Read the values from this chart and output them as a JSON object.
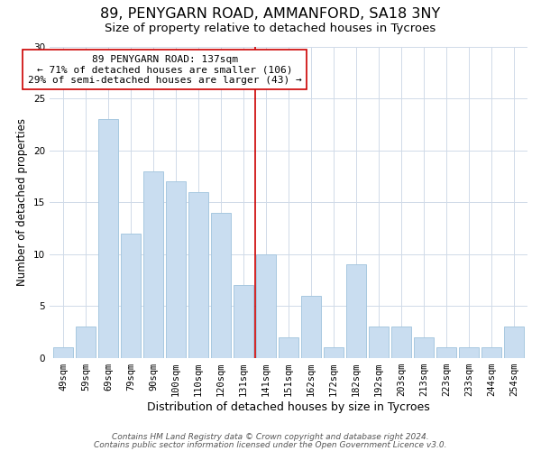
{
  "title": "89, PENYGARN ROAD, AMMANFORD, SA18 3NY",
  "subtitle": "Size of property relative to detached houses in Tycroes",
  "xlabel": "Distribution of detached houses by size in Tycroes",
  "ylabel": "Number of detached properties",
  "bar_labels": [
    "49sqm",
    "59sqm",
    "69sqm",
    "79sqm",
    "90sqm",
    "100sqm",
    "110sqm",
    "120sqm",
    "131sqm",
    "141sqm",
    "151sqm",
    "162sqm",
    "172sqm",
    "182sqm",
    "192sqm",
    "203sqm",
    "213sqm",
    "223sqm",
    "233sqm",
    "244sqm",
    "254sqm"
  ],
  "bar_values": [
    1,
    3,
    23,
    12,
    18,
    17,
    16,
    14,
    7,
    10,
    2,
    6,
    1,
    9,
    3,
    3,
    2,
    1,
    1,
    1,
    3
  ],
  "bar_color": "#c9ddf0",
  "bar_edge_color": "#a8c8e0",
  "vline_x": 8.5,
  "vline_color": "#cc0000",
  "annotation_line1": "89 PENYGARN ROAD: 137sqm",
  "annotation_line2": "← 71% of detached houses are smaller (106)",
  "annotation_line3": "29% of semi-detached houses are larger (43) →",
  "annotation_box_color": "#ffffff",
  "annotation_box_edge": "#cc0000",
  "ylim": [
    0,
    30
  ],
  "yticks": [
    0,
    5,
    10,
    15,
    20,
    25,
    30
  ],
  "footer1": "Contains HM Land Registry data © Crown copyright and database right 2024.",
  "footer2": "Contains public sector information licensed under the Open Government Licence v3.0.",
  "title_fontsize": 11.5,
  "subtitle_fontsize": 9.5,
  "xlabel_fontsize": 9,
  "ylabel_fontsize": 8.5,
  "tick_fontsize": 7.5,
  "annotation_fontsize": 8,
  "footer_fontsize": 6.5,
  "grid_color": "#d0dae8"
}
